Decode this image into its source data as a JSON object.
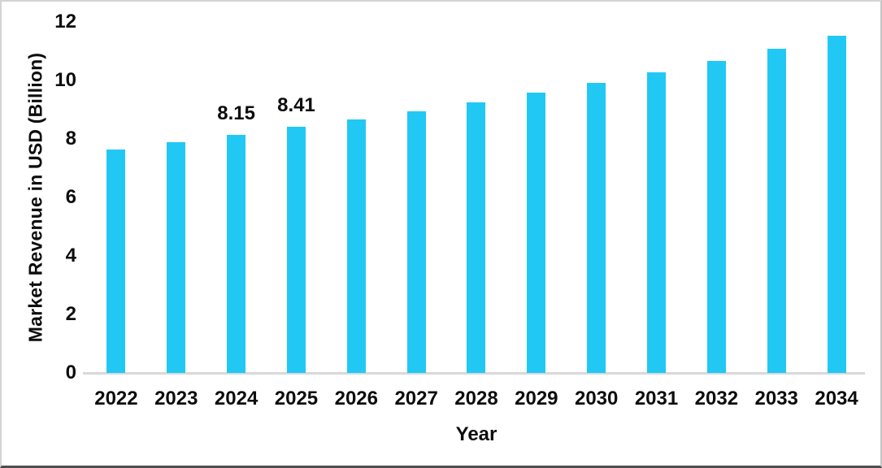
{
  "chart_data": {
    "type": "bar",
    "title": "",
    "xlabel": "Year",
    "ylabel": "Market Revenue in USD (Billion)",
    "categories": [
      "2022",
      "2023",
      "2024",
      "2025",
      "2026",
      "2027",
      "2028",
      "2029",
      "2030",
      "2031",
      "2032",
      "2033",
      "2034"
    ],
    "values": [
      7.65,
      7.9,
      8.15,
      8.41,
      8.68,
      8.95,
      9.24,
      9.58,
      9.92,
      10.27,
      10.67,
      11.08,
      11.53
    ],
    "data_labels": {
      "2024": "8.15",
      "2025": "8.41"
    },
    "y_ticks": [
      0,
      2,
      4,
      6,
      8,
      10,
      12
    ],
    "ylim": [
      0,
      12
    ],
    "grid": false,
    "legend": false,
    "bar_color": "#22c8f4",
    "axis_line_color": "#d9d9d9",
    "text_color": "#0d0d0d"
  }
}
